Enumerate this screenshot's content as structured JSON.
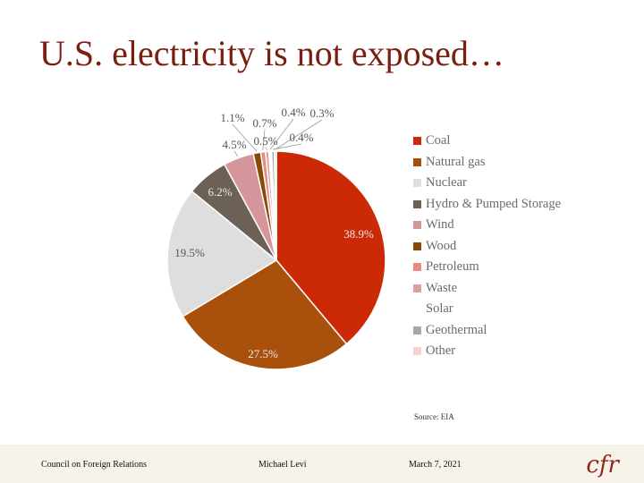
{
  "title": "U.S. electricity is not exposed…",
  "chart_data": {
    "type": "pie",
    "title": "",
    "legend_position": "right",
    "slices": [
      {
        "name": "Coal",
        "value": 38.9,
        "label": "38.9%",
        "color": "#cc2a06"
      },
      {
        "name": "Natural gas",
        "value": 27.5,
        "label": "27.5%",
        "color": "#a8500c"
      },
      {
        "name": "Nuclear",
        "value": 19.5,
        "label": "19.5%",
        "color": "#dedede"
      },
      {
        "name": "Hydro & Pumped Storage",
        "value": 6.2,
        "label": "6.2%",
        "color": "#6b6157"
      },
      {
        "name": "Wind",
        "value": 4.5,
        "label": "4.5%",
        "color": "#d6959a"
      },
      {
        "name": "Wood",
        "value": 1.1,
        "label": "1.1%",
        "color": "#8a4a06"
      },
      {
        "name": "Petroleum",
        "value": 0.7,
        "label": "0.7%",
        "color": "#e88a84"
      },
      {
        "name": "Waste",
        "value": 0.5,
        "label": "0.5%",
        "color": "#d9a498"
      },
      {
        "name": "Solar",
        "value": 0.4,
        "label": "0.4%",
        "color": "#ffffff"
      },
      {
        "name": "Geothermal",
        "value": 0.4,
        "label": "0.4%",
        "color": "#a7a7a7"
      },
      {
        "name": "Other",
        "value": 0.3,
        "label": "0.3%",
        "color": "#f6d3d3"
      }
    ]
  },
  "source": "Source: EIA",
  "footer": {
    "org": "Council on Foreign Relations",
    "author": "Michael Levi",
    "date": "March 7, 2021",
    "logo": "cfr"
  }
}
